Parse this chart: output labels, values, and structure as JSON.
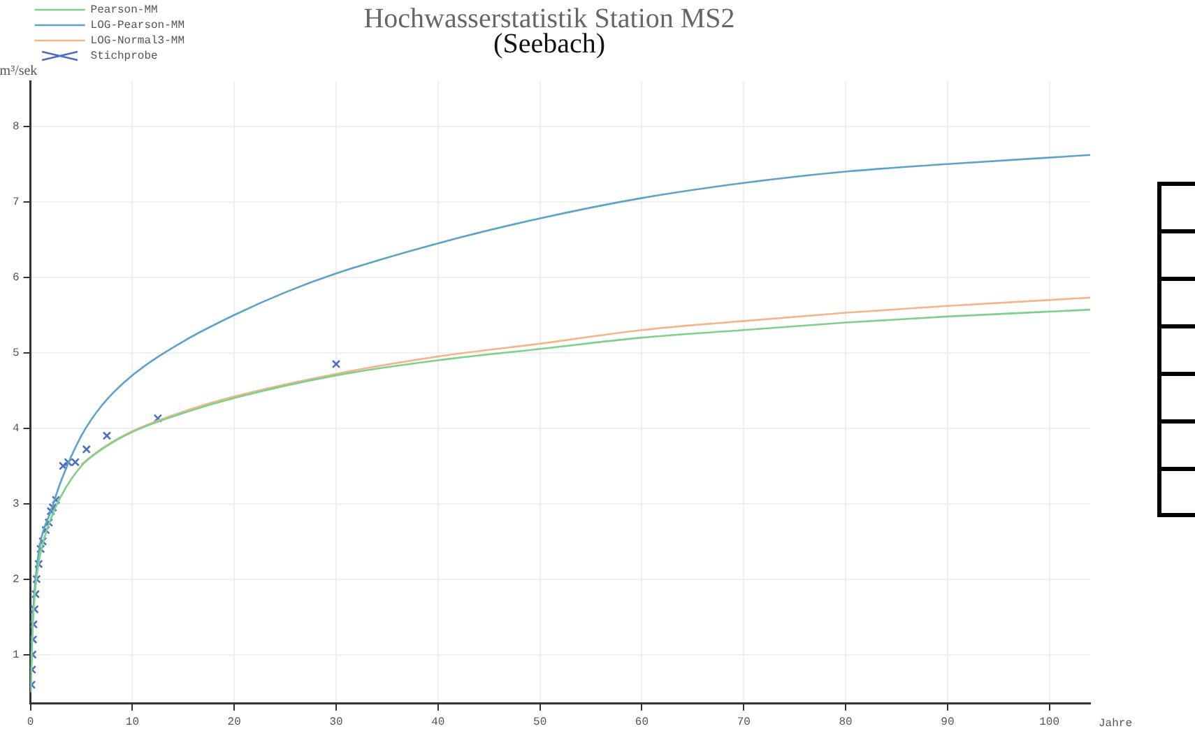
{
  "chart_data": {
    "type": "line",
    "title": "Hochwasserstatistik Station MS2",
    "subtitle": "(Seebach)",
    "xlabel": "Jahre",
    "ylabel": "m³/sek",
    "xlim": [
      0,
      104
    ],
    "ylim": [
      0.35,
      8.6
    ],
    "xticks": [
      0,
      10,
      20,
      30,
      40,
      50,
      60,
      70,
      80,
      90,
      100
    ],
    "yticks": [
      1,
      2,
      3,
      4,
      5,
      6,
      7,
      8
    ],
    "grid": true,
    "legend": "top left",
    "line_style": "solid",
    "marker": "none",
    "series": [
      {
        "name": "Pearson-MM",
        "color": "#7fd08a",
        "x": [
          0.02,
          0.2,
          0.5,
          1,
          2,
          3,
          5,
          7,
          10,
          15,
          20,
          30,
          40,
          50,
          60,
          70,
          80,
          90,
          104
        ],
        "values": [
          0.5,
          1.3,
          1.9,
          2.35,
          2.8,
          3.1,
          3.5,
          3.72,
          3.95,
          4.2,
          4.4,
          4.7,
          4.9,
          5.05,
          5.2,
          5.3,
          5.4,
          5.48,
          5.57
        ]
      },
      {
        "name": "LOG-Pearson-MM",
        "color": "#5ba4c8",
        "x": [
          0.02,
          0.2,
          0.5,
          1,
          2,
          3,
          5,
          7,
          10,
          15,
          20,
          25,
          30,
          40,
          50,
          60,
          70,
          80,
          90,
          104
        ],
        "values": [
          0.5,
          1.4,
          2.0,
          2.5,
          2.9,
          3.3,
          3.9,
          4.3,
          4.7,
          5.15,
          5.5,
          5.8,
          6.05,
          6.45,
          6.78,
          7.05,
          7.25,
          7.4,
          7.5,
          7.62
        ]
      },
      {
        "name": "LOG-Normal3-MM",
        "color": "#f2b58c",
        "x": [
          5,
          7,
          10,
          15,
          20,
          30,
          40,
          50,
          60,
          70,
          80,
          90,
          104
        ],
        "values": [
          3.52,
          3.73,
          3.96,
          4.22,
          4.42,
          4.72,
          4.95,
          5.12,
          5.3,
          5.42,
          5.53,
          5.62,
          5.73
        ]
      },
      {
        "name": "Stichprobe",
        "type": "scatter",
        "marker": "cross",
        "color": "#4a6fc4",
        "x": [
          0.1,
          0.15,
          0.2,
          0.25,
          0.3,
          0.4,
          0.5,
          0.6,
          0.8,
          1,
          1.2,
          1.5,
          1.8,
          2,
          2.2,
          2.5,
          3.2,
          3.7,
          4.4,
          5.5,
          7.5,
          12.5,
          30
        ],
        "values": [
          0.6,
          0.8,
          1.0,
          1.2,
          1.4,
          1.6,
          1.8,
          2.0,
          2.2,
          2.4,
          2.5,
          2.65,
          2.75,
          2.9,
          2.95,
          3.05,
          3.5,
          3.55,
          3.55,
          3.72,
          3.9,
          4.13,
          4.85
        ]
      }
    ]
  }
}
